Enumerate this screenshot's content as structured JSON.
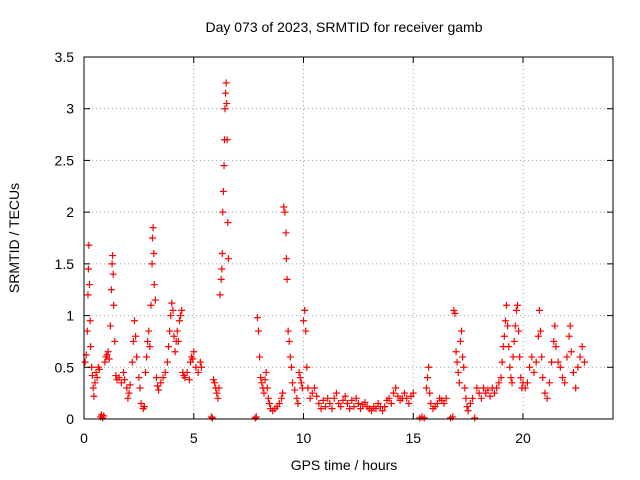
{
  "chart_data": {
    "type": "scatter",
    "title": "Day 073 of 2023, SRMTID for receiver gamb",
    "xlabel": "GPS time / hours",
    "ylabel": "SRMTID / TECUs",
    "xlim": [
      0,
      24.1
    ],
    "ylim": [
      0,
      3.5
    ],
    "xticks": [
      0,
      5,
      10,
      15,
      20
    ],
    "yticks": [
      0,
      0.5,
      1,
      1.5,
      2,
      2.5,
      3,
      3.5
    ],
    "xtick_labels": [
      "0",
      "5",
      "10",
      "15",
      "20"
    ],
    "ytick_labels": [
      "0",
      "0.5",
      "1",
      "1.5",
      "2",
      "2.5",
      "3",
      "3.5"
    ],
    "grid": true,
    "marker": "+",
    "color": "#ff0000",
    "series": [
      {
        "name": "SRMTID",
        "points": [
          [
            0.05,
            0.55
          ],
          [
            0.1,
            0.62
          ],
          [
            0.15,
            0.85
          ],
          [
            0.18,
            1.2
          ],
          [
            0.2,
            1.45
          ],
          [
            0.22,
            1.68
          ],
          [
            0.25,
            1.3
          ],
          [
            0.28,
            0.95
          ],
          [
            0.3,
            0.7
          ],
          [
            0.35,
            0.5
          ],
          [
            0.38,
            0.42
          ],
          [
            0.42,
            0.3
          ],
          [
            0.45,
            0.22
          ],
          [
            0.5,
            0.35
          ],
          [
            0.55,
            0.45
          ],
          [
            0.6,
            0.4
          ],
          [
            0.65,
            0.5
          ],
          [
            0.7,
            0.48
          ],
          [
            0.75,
            0.02
          ],
          [
            0.8,
            0.04
          ],
          [
            0.85,
            0.01
          ],
          [
            0.9,
            0.03
          ],
          [
            0.95,
            0.55
          ],
          [
            1.0,
            0.6
          ],
          [
            1.05,
            0.62
          ],
          [
            1.1,
            0.65
          ],
          [
            1.15,
            0.58
          ],
          [
            1.2,
            0.9
          ],
          [
            1.25,
            1.25
          ],
          [
            1.28,
            1.5
          ],
          [
            1.3,
            1.58
          ],
          [
            1.33,
            1.4
          ],
          [
            1.35,
            1.1
          ],
          [
            1.4,
            0.75
          ],
          [
            1.45,
            0.42
          ],
          [
            1.5,
            0.38
          ],
          [
            1.6,
            0.4
          ],
          [
            1.7,
            0.35
          ],
          [
            1.8,
            0.45
          ],
          [
            1.85,
            0.38
          ],
          [
            1.95,
            0.3
          ],
          [
            2.0,
            0.2
          ],
          [
            2.05,
            0.25
          ],
          [
            2.1,
            0.33
          ],
          [
            2.2,
            0.55
          ],
          [
            2.25,
            0.75
          ],
          [
            2.3,
            0.95
          ],
          [
            2.35,
            0.8
          ],
          [
            2.4,
            0.6
          ],
          [
            2.5,
            0.4
          ],
          [
            2.55,
            0.3
          ],
          [
            2.6,
            0.15
          ],
          [
            2.7,
            0.1
          ],
          [
            2.75,
            0.12
          ],
          [
            2.8,
            0.45
          ],
          [
            2.85,
            0.6
          ],
          [
            2.9,
            0.75
          ],
          [
            2.95,
            0.85
          ],
          [
            3.0,
            0.7
          ],
          [
            3.05,
            1.1
          ],
          [
            3.1,
            1.5
          ],
          [
            3.12,
            1.75
          ],
          [
            3.15,
            1.85
          ],
          [
            3.18,
            1.6
          ],
          [
            3.2,
            1.3
          ],
          [
            3.25,
            1.15
          ],
          [
            3.3,
            0.4
          ],
          [
            3.35,
            0.32
          ],
          [
            3.4,
            0.28
          ],
          [
            3.5,
            0.35
          ],
          [
            3.6,
            0.4
          ],
          [
            3.7,
            0.45
          ],
          [
            3.8,
            0.55
          ],
          [
            3.85,
            0.7
          ],
          [
            3.9,
            0.85
          ],
          [
            3.95,
            1.0
          ],
          [
            4.0,
            1.12
          ],
          [
            4.05,
            1.05
          ],
          [
            4.1,
            0.8
          ],
          [
            4.15,
            0.65
          ],
          [
            4.2,
            0.75
          ],
          [
            4.25,
            0.85
          ],
          [
            4.3,
            0.75
          ],
          [
            4.35,
            0.95
          ],
          [
            4.4,
            1.0
          ],
          [
            4.45,
            1.05
          ],
          [
            4.5,
            0.45
          ],
          [
            4.55,
            0.42
          ],
          [
            4.6,
            0.4
          ],
          [
            4.7,
            0.45
          ],
          [
            4.8,
            0.38
          ],
          [
            4.85,
            0.55
          ],
          [
            4.9,
            0.6
          ],
          [
            4.95,
            0.58
          ],
          [
            5.0,
            0.65
          ],
          [
            5.1,
            0.5
          ],
          [
            5.2,
            0.45
          ],
          [
            5.3,
            0.55
          ],
          [
            5.35,
            0.5
          ],
          [
            5.8,
            0.02
          ],
          [
            5.85,
            0.01
          ],
          [
            5.9,
            0.38
          ],
          [
            5.95,
            0.35
          ],
          [
            6.0,
            0.3
          ],
          [
            6.05,
            0.25
          ],
          [
            6.1,
            0.2
          ],
          [
            6.15,
            0.3
          ],
          [
            6.2,
            1.2
          ],
          [
            6.25,
            1.35
          ],
          [
            6.28,
            1.45
          ],
          [
            6.3,
            1.6
          ],
          [
            6.32,
            2.0
          ],
          [
            6.35,
            2.2
          ],
          [
            6.38,
            2.45
          ],
          [
            6.4,
            2.7
          ],
          [
            6.42,
            3.0
          ],
          [
            6.45,
            3.15
          ],
          [
            6.48,
            3.25
          ],
          [
            6.5,
            3.05
          ],
          [
            6.52,
            2.7
          ],
          [
            6.55,
            1.9
          ],
          [
            6.58,
            1.55
          ],
          [
            7.8,
            0.01
          ],
          [
            7.85,
            0.02
          ],
          [
            7.9,
            0.98
          ],
          [
            7.95,
            0.85
          ],
          [
            8.0,
            0.6
          ],
          [
            8.05,
            0.4
          ],
          [
            8.1,
            0.35
          ],
          [
            8.15,
            0.3
          ],
          [
            8.2,
            0.25
          ],
          [
            8.25,
            0.38
          ],
          [
            8.3,
            0.45
          ],
          [
            8.35,
            0.3
          ],
          [
            8.4,
            0.2
          ],
          [
            8.45,
            0.15
          ],
          [
            8.5,
            0.1
          ],
          [
            8.6,
            0.08
          ],
          [
            8.7,
            0.1
          ],
          [
            8.8,
            0.12
          ],
          [
            8.9,
            0.15
          ],
          [
            9.0,
            0.2
          ],
          [
            9.05,
            0.25
          ],
          [
            9.1,
            2.05
          ],
          [
            9.15,
            2.0
          ],
          [
            9.2,
            1.8
          ],
          [
            9.22,
            1.55
          ],
          [
            9.25,
            1.35
          ],
          [
            9.3,
            0.85
          ],
          [
            9.35,
            0.75
          ],
          [
            9.4,
            0.6
          ],
          [
            9.45,
            0.5
          ],
          [
            9.5,
            0.35
          ],
          [
            9.6,
            0.28
          ],
          [
            9.7,
            0.2
          ],
          [
            9.75,
            0.15
          ],
          [
            9.8,
            0.45
          ],
          [
            9.85,
            0.4
          ],
          [
            9.9,
            0.35
          ],
          [
            9.95,
            0.3
          ],
          [
            10.0,
            0.95
          ],
          [
            10.05,
            1.05
          ],
          [
            10.1,
            0.85
          ],
          [
            10.15,
            0.5
          ],
          [
            10.2,
            0.3
          ],
          [
            10.3,
            0.2
          ],
          [
            10.4,
            0.25
          ],
          [
            10.5,
            0.3
          ],
          [
            10.6,
            0.22
          ],
          [
            10.7,
            0.15
          ],
          [
            10.8,
            0.1
          ],
          [
            10.9,
            0.18
          ],
          [
            11.0,
            0.12
          ],
          [
            11.1,
            0.2
          ],
          [
            11.2,
            0.15
          ],
          [
            11.3,
            0.1
          ],
          [
            11.4,
            0.2
          ],
          [
            11.5,
            0.25
          ],
          [
            11.6,
            0.15
          ],
          [
            11.7,
            0.12
          ],
          [
            11.8,
            0.18
          ],
          [
            11.9,
            0.22
          ],
          [
            12.0,
            0.15
          ],
          [
            12.1,
            0.1
          ],
          [
            12.2,
            0.18
          ],
          [
            12.3,
            0.12
          ],
          [
            12.4,
            0.2
          ],
          [
            12.5,
            0.15
          ],
          [
            12.6,
            0.1
          ],
          [
            12.7,
            0.14
          ],
          [
            12.8,
            0.16
          ],
          [
            12.9,
            0.12
          ],
          [
            13.0,
            0.1
          ],
          [
            13.1,
            0.08
          ],
          [
            13.2,
            0.12
          ],
          [
            13.3,
            0.1
          ],
          [
            13.4,
            0.15
          ],
          [
            13.5,
            0.12
          ],
          [
            13.6,
            0.08
          ],
          [
            13.7,
            0.12
          ],
          [
            13.8,
            0.18
          ],
          [
            13.9,
            0.2
          ],
          [
            14.0,
            0.15
          ],
          [
            14.1,
            0.25
          ],
          [
            14.2,
            0.3
          ],
          [
            14.3,
            0.22
          ],
          [
            14.4,
            0.18
          ],
          [
            14.5,
            0.2
          ],
          [
            14.6,
            0.25
          ],
          [
            14.7,
            0.2
          ],
          [
            14.8,
            0.15
          ],
          [
            14.9,
            0.22
          ],
          [
            15.0,
            0.25
          ],
          [
            15.3,
            0.01
          ],
          [
            15.4,
            0.02
          ],
          [
            15.5,
            0.01
          ],
          [
            15.6,
            0.3
          ],
          [
            15.65,
            0.4
          ],
          [
            15.7,
            0.5
          ],
          [
            15.75,
            0.25
          ],
          [
            15.8,
            0.15
          ],
          [
            15.9,
            0.1
          ],
          [
            16.0,
            0.12
          ],
          [
            16.1,
            0.15
          ],
          [
            16.2,
            0.2
          ],
          [
            16.3,
            0.18
          ],
          [
            16.4,
            0.15
          ],
          [
            16.5,
            0.2
          ],
          [
            16.7,
            0.01
          ],
          [
            16.8,
            0.02
          ],
          [
            16.85,
            1.05
          ],
          [
            16.9,
            1.02
          ],
          [
            16.95,
            0.65
          ],
          [
            17.0,
            0.55
          ],
          [
            17.05,
            0.45
          ],
          [
            17.1,
            0.35
          ],
          [
            17.15,
            0.75
          ],
          [
            17.2,
            0.85
          ],
          [
            17.25,
            0.6
          ],
          [
            17.3,
            0.5
          ],
          [
            17.35,
            0.3
          ],
          [
            17.4,
            0.2
          ],
          [
            17.45,
            0.12
          ],
          [
            17.5,
            0.08
          ],
          [
            17.6,
            0.15
          ],
          [
            17.7,
            0.2
          ],
          [
            17.8,
            0.01
          ],
          [
            17.9,
            0.3
          ],
          [
            18.0,
            0.25
          ],
          [
            18.1,
            0.2
          ],
          [
            18.2,
            0.3
          ],
          [
            18.3,
            0.25
          ],
          [
            18.4,
            0.28
          ],
          [
            18.5,
            0.22
          ],
          [
            18.6,
            0.3
          ],
          [
            18.7,
            0.25
          ],
          [
            18.8,
            0.3
          ],
          [
            18.9,
            0.35
          ],
          [
            19.0,
            0.4
          ],
          [
            19.05,
            0.55
          ],
          [
            19.1,
            0.7
          ],
          [
            19.15,
            0.8
          ],
          [
            19.2,
            0.95
          ],
          [
            19.25,
            1.1
          ],
          [
            19.3,
            0.9
          ],
          [
            19.35,
            0.7
          ],
          [
            19.4,
            0.5
          ],
          [
            19.45,
            0.4
          ],
          [
            19.5,
            0.35
          ],
          [
            19.55,
            0.6
          ],
          [
            19.6,
            0.75
          ],
          [
            19.65,
            0.9
          ],
          [
            19.7,
            1.05
          ],
          [
            19.75,
            1.1
          ],
          [
            19.8,
            0.85
          ],
          [
            19.85,
            0.6
          ],
          [
            19.9,
            0.4
          ],
          [
            19.95,
            0.3
          ],
          [
            20.0,
            0.35
          ],
          [
            20.1,
            0.3
          ],
          [
            20.2,
            0.35
          ],
          [
            20.3,
            0.5
          ],
          [
            20.4,
            0.6
          ],
          [
            20.5,
            0.45
          ],
          [
            20.6,
            0.55
          ],
          [
            20.7,
            0.8
          ],
          [
            20.75,
            1.05
          ],
          [
            20.8,
            0.85
          ],
          [
            20.85,
            0.6
          ],
          [
            20.9,
            0.4
          ],
          [
            21.0,
            0.25
          ],
          [
            21.1,
            0.2
          ],
          [
            21.2,
            0.35
          ],
          [
            21.3,
            0.55
          ],
          [
            21.4,
            0.75
          ],
          [
            21.45,
            0.9
          ],
          [
            21.5,
            0.7
          ],
          [
            21.6,
            0.55
          ],
          [
            21.7,
            0.5
          ],
          [
            21.8,
            0.4
          ],
          [
            21.9,
            0.35
          ],
          [
            22.0,
            0.6
          ],
          [
            22.1,
            0.8
          ],
          [
            22.15,
            0.9
          ],
          [
            22.2,
            0.65
          ],
          [
            22.3,
            0.45
          ],
          [
            22.4,
            0.3
          ],
          [
            22.5,
            0.5
          ],
          [
            22.6,
            0.6
          ],
          [
            22.7,
            0.7
          ],
          [
            22.8,
            0.55
          ]
        ]
      }
    ]
  }
}
